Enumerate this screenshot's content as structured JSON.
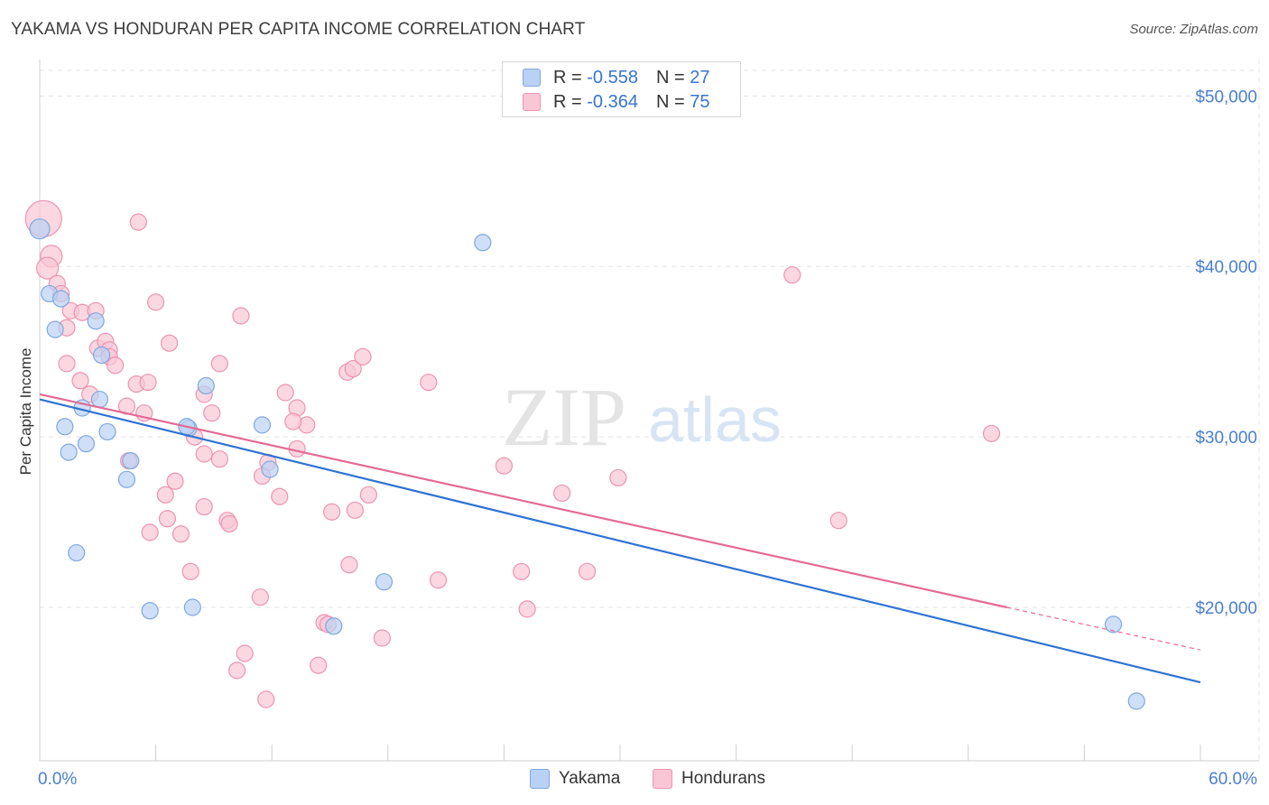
{
  "header": {
    "title": "YAKAMA VS HONDURAN PER CAPITA INCOME CORRELATION CHART",
    "source": "Source: ZipAtlas.com"
  },
  "watermark": {
    "zip": "ZIP",
    "atlas": "atlas"
  },
  "legend_top": {
    "series1": {
      "r_label": "R =",
      "r_value": "-0.558",
      "n_label": "N =",
      "n_value": "27"
    },
    "series2": {
      "r_label": "R =",
      "r_value": "-0.364",
      "n_label": "N =",
      "n_value": "75"
    }
  },
  "legend_bottom": {
    "series1": "Yakama",
    "series2": "Hondurans"
  },
  "colors": {
    "yakama_fill": "#b9d1f4",
    "yakama_stroke": "#7fa8e0",
    "yakama_line": "#2f73d4",
    "honduran_fill": "#f9c6d6",
    "honduran_stroke": "#ec94b2",
    "honduran_line": "#e46a95",
    "tick_text": "#4a7fcf",
    "grid": "#e3e3e3"
  },
  "chart_data": {
    "type": "scatter",
    "title": "YAKAMA VS HONDURAN PER CAPITA INCOME CORRELATION CHART",
    "xlabel": "",
    "ylabel": "Per Capita Income",
    "xlim": [
      0,
      60
    ],
    "ylim": [
      11000,
      51500
    ],
    "x_tick_labels": [
      "0.0%",
      "60.0%"
    ],
    "y_ticks": [
      20000,
      30000,
      40000,
      50000
    ],
    "y_tick_labels": [
      "$20,000",
      "$30,000",
      "$40,000",
      "$50,000"
    ],
    "grid": true,
    "series": [
      {
        "name": "Yakama",
        "R": -0.558,
        "N": 27,
        "trend": {
          "x0": 0,
          "y0": 32200,
          "x1": 60,
          "y1": 15600
        },
        "points": [
          [
            0.0,
            42200,
            11
          ],
          [
            0.5,
            38400,
            9
          ],
          [
            1.1,
            38100,
            9
          ],
          [
            0.8,
            36300,
            9
          ],
          [
            2.9,
            36800,
            9
          ],
          [
            3.2,
            34800,
            9
          ],
          [
            1.3,
            30600,
            9
          ],
          [
            2.2,
            31700,
            9
          ],
          [
            3.1,
            32200,
            9
          ],
          [
            3.5,
            30300,
            9
          ],
          [
            2.4,
            29600,
            9
          ],
          [
            1.5,
            29100,
            9
          ],
          [
            4.7,
            28600,
            9
          ],
          [
            4.5,
            27500,
            9
          ],
          [
            1.9,
            23200,
            9
          ],
          [
            5.7,
            19800,
            9
          ],
          [
            7.9,
            20000,
            9
          ],
          [
            8.6,
            33000,
            9
          ],
          [
            7.7,
            30500,
            9
          ],
          [
            11.5,
            30700,
            9
          ],
          [
            11.9,
            28100,
            9
          ],
          [
            15.2,
            18900,
            9
          ],
          [
            17.8,
            21500,
            9
          ],
          [
            22.9,
            41400,
            9
          ],
          [
            55.5,
            19000,
            9
          ],
          [
            56.7,
            14500,
            9
          ],
          [
            7.6,
            30600,
            9
          ]
        ]
      },
      {
        "name": "Hondurans",
        "R": -0.364,
        "N": 75,
        "trend": {
          "x0": 0,
          "y0": 32500,
          "x1": 50,
          "y1": 20000,
          "dash_to_x": 60,
          "dash_to_y": 17500
        },
        "points": [
          [
            0.2,
            42800,
            20
          ],
          [
            0.6,
            40600,
            12
          ],
          [
            0.4,
            39900,
            12
          ],
          [
            0.9,
            39000,
            9
          ],
          [
            1.1,
            38400,
            9
          ],
          [
            1.6,
            37400,
            9
          ],
          [
            2.2,
            37300,
            9
          ],
          [
            2.9,
            37400,
            9
          ],
          [
            1.4,
            36400,
            9
          ],
          [
            3.0,
            35200,
            9
          ],
          [
            3.4,
            35600,
            9
          ],
          [
            3.6,
            35100,
            9
          ],
          [
            3.6,
            34700,
            9
          ],
          [
            3.9,
            34200,
            9
          ],
          [
            1.4,
            34300,
            9
          ],
          [
            2.1,
            33300,
            9
          ],
          [
            5.0,
            33100,
            9
          ],
          [
            5.6,
            33200,
            9
          ],
          [
            2.6,
            32500,
            9
          ],
          [
            4.5,
            31800,
            9
          ],
          [
            5.4,
            31400,
            9
          ],
          [
            5.1,
            42600,
            9
          ],
          [
            6.0,
            37900,
            9
          ],
          [
            6.7,
            35500,
            9
          ],
          [
            8.5,
            32500,
            9
          ],
          [
            8.9,
            31400,
            9
          ],
          [
            8.0,
            30000,
            9
          ],
          [
            9.3,
            34300,
            9
          ],
          [
            10.4,
            37100,
            9
          ],
          [
            12.7,
            32600,
            9
          ],
          [
            13.3,
            31700,
            9
          ],
          [
            13.8,
            30700,
            9
          ],
          [
            13.1,
            30900,
            9
          ],
          [
            13.3,
            29300,
            9
          ],
          [
            11.8,
            28500,
            9
          ],
          [
            11.5,
            27700,
            9
          ],
          [
            12.4,
            26500,
            9
          ],
          [
            8.5,
            29000,
            9
          ],
          [
            9.3,
            28700,
            9
          ],
          [
            4.6,
            28600,
            9
          ],
          [
            7.0,
            27400,
            9
          ],
          [
            6.5,
            26600,
            9
          ],
          [
            6.6,
            25200,
            9
          ],
          [
            8.5,
            25900,
            9
          ],
          [
            9.7,
            25100,
            9
          ],
          [
            9.8,
            24900,
            9
          ],
          [
            5.7,
            24400,
            9
          ],
          [
            7.3,
            24300,
            9
          ],
          [
            7.8,
            22100,
            9
          ],
          [
            11.4,
            20600,
            9
          ],
          [
            10.6,
            17300,
            9
          ],
          [
            10.2,
            16300,
            9
          ],
          [
            11.7,
            14600,
            9
          ],
          [
            14.7,
            19100,
            9
          ],
          [
            14.9,
            19000,
            9
          ],
          [
            14.4,
            16600,
            9
          ],
          [
            15.1,
            25600,
            9
          ],
          [
            16.3,
            25700,
            9
          ],
          [
            17.0,
            26600,
            9
          ],
          [
            16.0,
            22500,
            9
          ],
          [
            17.7,
            18200,
            9
          ],
          [
            15.9,
            33800,
            9
          ],
          [
            16.2,
            34000,
            9
          ],
          [
            16.7,
            34700,
            9
          ],
          [
            20.1,
            33200,
            9
          ],
          [
            20.6,
            21600,
            9
          ],
          [
            24.0,
            28300,
            9
          ],
          [
            24.9,
            22100,
            9
          ],
          [
            25.2,
            19900,
            9
          ],
          [
            27.0,
            26700,
            9
          ],
          [
            28.3,
            22100,
            9
          ],
          [
            29.9,
            27600,
            9
          ],
          [
            38.9,
            39500,
            9
          ],
          [
            41.3,
            25100,
            9
          ],
          [
            49.2,
            30200,
            9
          ]
        ]
      }
    ]
  }
}
